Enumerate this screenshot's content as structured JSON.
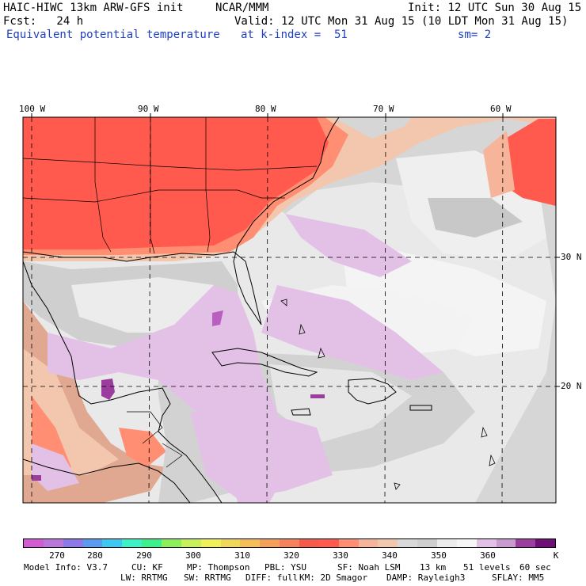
{
  "header": {
    "model": "HAIC-HIWC 13km ARW-GFS init",
    "agency": "NCAR/MMM",
    "init": "Init: 12 UTC Sun 30 Aug 15",
    "fcst": "Fcst:   24 h",
    "valid": "Valid: 12 UTC Mon 31 Aug 15 (10 LDT Mon 31 Aug 15)",
    "field": "Equivalent potential temperature",
    "level": "at k-index =  51",
    "smooth": "sm= 2"
  },
  "map": {
    "lon_labels": [
      "100 W",
      "90 W",
      "80 W",
      "70 W",
      "60 W"
    ],
    "lat_labels": [
      "30 N",
      "20 N"
    ],
    "colors": {
      "warm": "#ff5a4d",
      "warm_salmon": "#ff8e72",
      "peach": "#f3c7ad",
      "gray": "#cfcfcf",
      "light_gray": "#e5e5e5",
      "white": "#f6f6f6",
      "lavender": "#e3c1e6",
      "purple": "#b95fbf",
      "dark_purple": "#8a2d8f",
      "coast": "#000000"
    }
  },
  "colorbar": {
    "colors": [
      "#d25ad2",
      "#b978d9",
      "#8c78e6",
      "#5a9bf0",
      "#3cc8f0",
      "#3cf0c8",
      "#3cf08c",
      "#8cf05a",
      "#c8f05a",
      "#f0f05a",
      "#f0d75a",
      "#f5be5a",
      "#f5a05a",
      "#f5825a",
      "#f55a4b",
      "#ff5a4d",
      "#ff8e72",
      "#f6b59a",
      "#f3c7ad",
      "#d9d9d9",
      "#cfcfcf",
      "#ececec",
      "#f6f6f6",
      "#e3c1e6",
      "#c99ad0",
      "#9a3d9e",
      "#6e0f78"
    ],
    "labels": [
      "270",
      "280",
      "290",
      "300",
      "310",
      "320",
      "330",
      "340",
      "350",
      "360",
      "K"
    ]
  },
  "footer": {
    "line1": [
      {
        "text": "Model Info: V3.7"
      },
      {
        "text": "CU: KF"
      },
      {
        "text": "MP: Thompson"
      },
      {
        "text": "PBL: YSU"
      },
      {
        "text": "SF: Noah LSM"
      },
      {
        "text": "13 km"
      },
      {
        "text": "51 levels"
      },
      {
        "text": "60 sec"
      }
    ],
    "line2": [
      {
        "text": "LW: RRTMG"
      },
      {
        "text": "SW: RRTMG"
      },
      {
        "text": "DIFF: full"
      },
      {
        "text": "KM: 2D Smagor"
      },
      {
        "text": "DAMP: Rayleigh3"
      },
      {
        "text": "SFLAY: MM5"
      }
    ]
  }
}
